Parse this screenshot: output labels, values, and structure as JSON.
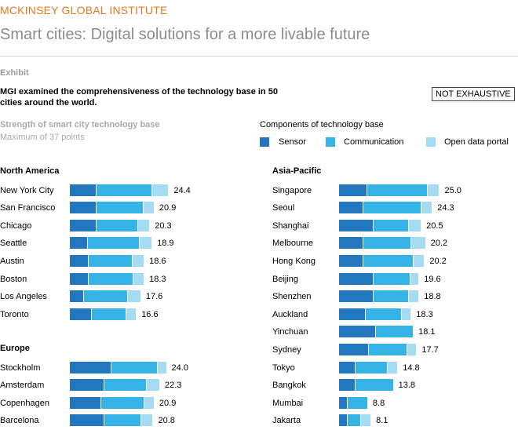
{
  "header": {
    "brand": "MCKINSEY GLOBAL INSTITUTE",
    "headline": "Smart cities: Digital solutions for a more livable future"
  },
  "exhibit": {
    "label": "Exhibit",
    "description": "MGI examined the comprehensiveness of the technology base in 50 cities around the world.",
    "badge": "NOT EXHAUSTIVE",
    "metric_title": "Strength of smart city technology base",
    "metric_subtitle": "Maximum of 37 points"
  },
  "legend": {
    "title": "Components of technology base",
    "items": [
      {
        "label": "Sensor",
        "color": "#2277be"
      },
      {
        "label": "Communication",
        "color": "#35b3e6"
      },
      {
        "label": "Open data portal",
        "color": "#a6dbf4"
      }
    ]
  },
  "chart_data": {
    "type": "bar",
    "orientation": "horizontal",
    "stacked": true,
    "title": "Strength of smart city technology base",
    "subtitle": "Maximum of 37 points",
    "xlim": [
      0,
      37
    ],
    "grid": false,
    "series_names": [
      "Sensor",
      "Communication",
      "Open data portal"
    ],
    "colors": [
      "#2277be",
      "#35b3e6",
      "#a6dbf4"
    ],
    "groups": [
      {
        "region": "North America",
        "column": "left",
        "rows": [
          {
            "city": "New York City",
            "values": [
              4.8,
              10.0,
              3.0
            ],
            "total": "24.4"
          },
          {
            "city": "San Francisco",
            "values": [
              4.8,
              8.4,
              2.0
            ],
            "total": "20.9"
          },
          {
            "city": "Chicago",
            "values": [
              4.8,
              7.4,
              2.2
            ],
            "total": "20.3"
          },
          {
            "city": "Seattle",
            "values": [
              3.2,
              9.4,
              2.2
            ],
            "total": "18.9"
          },
          {
            "city": "Austin",
            "values": [
              3.4,
              7.8,
              2.2
            ],
            "total": "18.6"
          },
          {
            "city": "Boston",
            "values": [
              3.4,
              8.0,
              2.0
            ],
            "total": "18.3"
          },
          {
            "city": "Los Angeles",
            "values": [
              2.6,
              7.8,
              2.4
            ],
            "total": "17.6"
          },
          {
            "city": "Toronto",
            "values": [
              4.0,
              6.2,
              1.8
            ],
            "total": "16.6"
          }
        ]
      },
      {
        "region": "Europe",
        "column": "left",
        "rows": [
          {
            "city": "Stockholm",
            "values": [
              7.4,
              8.4,
              1.6
            ],
            "total": "24.0"
          },
          {
            "city": "Amsterdam",
            "values": [
              6.2,
              7.6,
              2.4
            ],
            "total": "22.3"
          },
          {
            "city": "Copenhagen",
            "values": [
              5.6,
              7.8,
              1.8
            ],
            "total": "20.9"
          },
          {
            "city": "Barcelona",
            "values": [
              6.2,
              6.6,
              2.2
            ],
            "total": "20.8"
          }
        ]
      },
      {
        "region": "Asia-Pacific",
        "column": "right",
        "rows": [
          {
            "city": "Singapore",
            "values": [
              5.0,
              10.9,
              2.2
            ],
            "total": "25.0"
          },
          {
            "city": "Seoul",
            "values": [
              4.4,
              10.4,
              2.0
            ],
            "total": "24.3"
          },
          {
            "city": "Shanghai",
            "values": [
              6.2,
              6.4,
              2.2
            ],
            "total": "20.5"
          },
          {
            "city": "Melbourne",
            "values": [
              4.4,
              8.6,
              2.6
            ],
            "total": "20.2"
          },
          {
            "city": "Hong Kong",
            "values": [
              4.4,
              9.0,
              2.0
            ],
            "total": "20.2"
          },
          {
            "city": "Beijing",
            "values": [
              6.2,
              6.6,
              1.6
            ],
            "total": "19.6"
          },
          {
            "city": "Shenzhen",
            "values": [
              6.2,
              6.4,
              1.8
            ],
            "total": "18.8"
          },
          {
            "city": "Auckland",
            "values": [
              4.8,
              6.4,
              1.8
            ],
            "total": "18.3"
          },
          {
            "city": "Yinchuan",
            "values": [
              6.6,
              6.8,
              0.0
            ],
            "total": "18.1"
          },
          {
            "city": "Sydney",
            "values": [
              5.4,
              6.8,
              1.8
            ],
            "total": "17.7"
          },
          {
            "city": "Tokyo",
            "values": [
              3.0,
              5.8,
              1.8
            ],
            "total": "14.8"
          },
          {
            "city": "Bangkok",
            "values": [
              3.0,
              6.8,
              0.0
            ],
            "total": "13.8"
          },
          {
            "city": "Mumbai",
            "values": [
              1.6,
              3.6,
              0.0
            ],
            "total": "8.8"
          },
          {
            "city": "Jakarta",
            "values": [
              1.6,
              2.4,
              1.8
            ],
            "total": "8.1"
          }
        ]
      }
    ]
  }
}
